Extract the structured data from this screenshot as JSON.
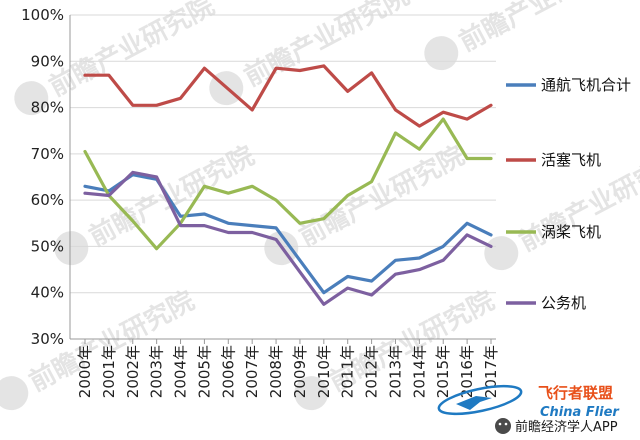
{
  "chart_data": {
    "type": "line",
    "title": "",
    "xlabel": "",
    "ylabel": "",
    "ylim": [
      30,
      100
    ],
    "yticks": [
      "30%",
      "40%",
      "50%",
      "60%",
      "70%",
      "80%",
      "90%",
      "100%"
    ],
    "ytick_values": [
      30,
      40,
      50,
      60,
      70,
      80,
      90,
      100
    ],
    "categories": [
      "2000年",
      "2001年",
      "2002年",
      "2003年",
      "2004年",
      "2005年",
      "2006年",
      "2007年",
      "2008年",
      "2009年",
      "2010年",
      "2011年",
      "2012年",
      "2013年",
      "2014年",
      "2015年",
      "2016年",
      "2017年"
    ],
    "grid": "horizontal",
    "legend_position": "right",
    "series": [
      {
        "name": "通航飞机合计",
        "color": "#4a7ebb",
        "values": [
          63,
          62,
          65.5,
          64.5,
          56.5,
          57,
          55,
          54.5,
          54,
          47,
          40,
          43.5,
          42.5,
          47,
          47.5,
          50,
          55,
          52.5
        ]
      },
      {
        "name": "活塞飞机",
        "color": "#be4b48",
        "values": [
          87,
          87,
          80.5,
          80.5,
          82,
          88.5,
          84,
          79.5,
          88.5,
          88,
          89,
          83.5,
          87.5,
          79.5,
          76,
          79,
          77.5,
          80.5
        ]
      },
      {
        "name": "涡桨飞机",
        "color": "#98b954",
        "values": [
          70.5,
          61,
          55.5,
          49.5,
          55,
          63,
          61.5,
          63,
          60,
          55,
          56,
          61,
          64,
          74.5,
          71,
          77.5,
          69,
          69
        ]
      },
      {
        "name": "公务机",
        "color": "#7d60a0",
        "values": [
          61.5,
          61,
          66,
          65,
          54.5,
          54.5,
          53,
          53,
          51.5,
          44.5,
          37.5,
          41,
          39.5,
          44,
          45,
          47,
          52.5,
          50
        ]
      }
    ]
  },
  "watermark": {
    "text": "前瞻产业研究院"
  },
  "footer": {
    "account": "前瞻经济学人APP"
  },
  "logo": {
    "title": "飞行者联盟",
    "subtitle": "China Flier"
  }
}
